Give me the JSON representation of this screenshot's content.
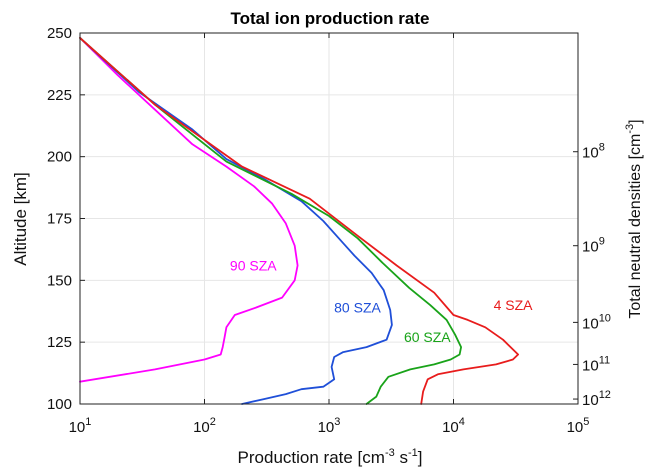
{
  "chart_data": {
    "type": "line",
    "title": "Total ion production rate",
    "xlabel": "Production rate [cm⁻³ s⁻¹]",
    "ylabel": "Altitude [km]",
    "y2label": "Total neutral densities [cm⁻³]",
    "xscale": "log",
    "xlim": [
      10,
      100000
    ],
    "ylim": [
      100,
      250
    ],
    "grid": true,
    "x_ticks": [
      {
        "base": "10",
        "exp": "1"
      },
      {
        "base": "10",
        "exp": "2"
      },
      {
        "base": "10",
        "exp": "3"
      },
      {
        "base": "10",
        "exp": "4"
      },
      {
        "base": "10",
        "exp": "5"
      }
    ],
    "y_ticks": [
      "100",
      "125",
      "150",
      "175",
      "200",
      "225",
      "250"
    ],
    "y2_ticks": [
      {
        "base": "10",
        "exp": "8",
        "altitude": 202
      },
      {
        "base": "10",
        "exp": "9",
        "altitude": 164
      },
      {
        "base": "10",
        "exp": "10",
        "altitude": 133
      },
      {
        "base": "10",
        "exp": "11",
        "altitude": 116
      },
      {
        "base": "10",
        "exp": "12",
        "altitude": 102
      }
    ],
    "series": [
      {
        "name": "90 SZA",
        "color": "#ff00ff",
        "label_at": {
          "x": 160,
          "y": 154
        },
        "points": [
          [
            10,
            248
          ],
          [
            20,
            233
          ],
          [
            40,
            219
          ],
          [
            80,
            205
          ],
          [
            150,
            196
          ],
          [
            250,
            188
          ],
          [
            350,
            181
          ],
          [
            450,
            173
          ],
          [
            530,
            164
          ],
          [
            560,
            156
          ],
          [
            530,
            150
          ],
          [
            420,
            143
          ],
          [
            260,
            139
          ],
          [
            175,
            136
          ],
          [
            150,
            131
          ],
          [
            145,
            127
          ],
          [
            140,
            123
          ],
          [
            135,
            120
          ],
          [
            100,
            118
          ],
          [
            40,
            114
          ],
          [
            10,
            109
          ]
        ]
      },
      {
        "name": "80 SZA",
        "color": "#1f4fd8",
        "label_at": {
          "x": 1100,
          "y": 137
        },
        "points": [
          [
            10,
            248
          ],
          [
            30,
            226
          ],
          [
            80,
            211
          ],
          [
            150,
            199
          ],
          [
            300,
            191
          ],
          [
            600,
            182
          ],
          [
            900,
            174
          ],
          [
            1300,
            165
          ],
          [
            1600,
            160
          ],
          [
            2200,
            153
          ],
          [
            2750,
            146
          ],
          [
            3100,
            138
          ],
          [
            3200,
            132
          ],
          [
            2900,
            126
          ],
          [
            2000,
            123
          ],
          [
            1300,
            121
          ],
          [
            1100,
            119
          ],
          [
            1050,
            115
          ],
          [
            1100,
            110
          ],
          [
            900,
            107
          ],
          [
            600,
            106
          ],
          [
            450,
            104
          ],
          [
            300,
            102
          ],
          [
            200,
            100
          ]
        ]
      },
      {
        "name": "60 SZA",
        "color": "#19a319",
        "label_at": {
          "x": 4000,
          "y": 125
        },
        "points": [
          [
            10,
            248
          ],
          [
            40,
            221
          ],
          [
            150,
            198
          ],
          [
            500,
            185
          ],
          [
            1000,
            176
          ],
          [
            1700,
            167
          ],
          [
            2700,
            157
          ],
          [
            4400,
            147
          ],
          [
            6500,
            140
          ],
          [
            8800,
            134
          ],
          [
            10300,
            128
          ],
          [
            11500,
            123
          ],
          [
            11200,
            120
          ],
          [
            9500,
            118
          ],
          [
            7000,
            116
          ],
          [
            4500,
            114
          ],
          [
            3000,
            111
          ],
          [
            2600,
            107
          ],
          [
            2400,
            103
          ],
          [
            2000,
            100
          ]
        ]
      },
      {
        "name": "4 SZA",
        "color": "#e81c1c",
        "label_at": {
          "x": 21000,
          "y": 138
        },
        "points": [
          [
            10,
            248
          ],
          [
            40,
            221
          ],
          [
            200,
            196
          ],
          [
            700,
            183
          ],
          [
            1700,
            168
          ],
          [
            3500,
            156
          ],
          [
            7000,
            145
          ],
          [
            10000,
            136
          ],
          [
            13000,
            134
          ],
          [
            18000,
            131
          ],
          [
            25000,
            126
          ],
          [
            33000,
            120
          ],
          [
            30000,
            118
          ],
          [
            22000,
            116
          ],
          [
            12000,
            114
          ],
          [
            7500,
            112
          ],
          [
            6200,
            110
          ],
          [
            5700,
            105
          ],
          [
            5500,
            100
          ]
        ]
      }
    ]
  }
}
